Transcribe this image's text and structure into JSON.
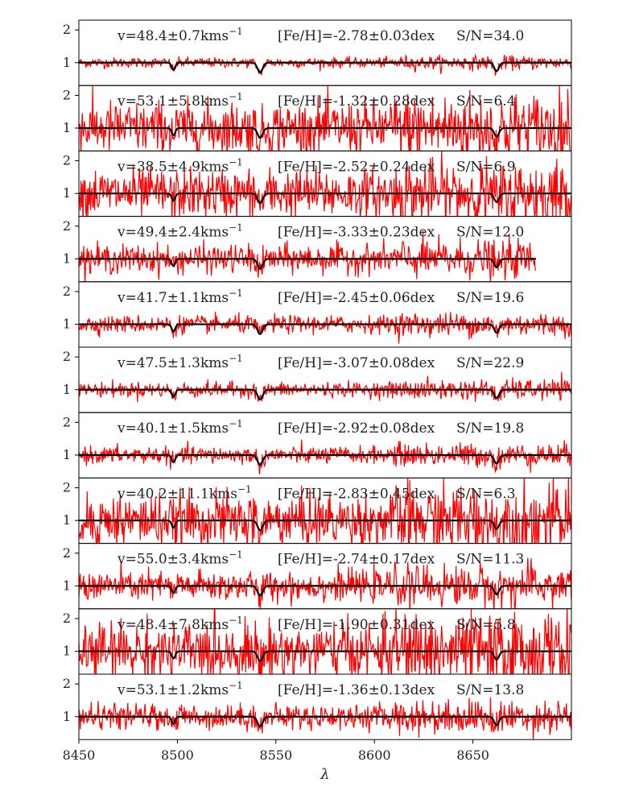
{
  "chart_data": {
    "type": "line",
    "xlabel": "λ",
    "xlim": [
      8450,
      8700
    ],
    "xticks": [
      8450,
      8500,
      8550,
      8600,
      8650
    ],
    "ylim": [
      0.3,
      2.3
    ],
    "yticks": [
      1,
      2
    ],
    "grid": false,
    "colors": {
      "observed": "#ff0000",
      "model": "#000000"
    },
    "series": [
      {
        "name": "observed spectrum"
      },
      {
        "name": "model spectrum"
      }
    ],
    "panels": [
      {
        "velocity": "v=48.4±0.7kms",
        "feh": "[Fe/H]=-2.78±0.03dex",
        "sn": "S/N=34.0",
        "sn_value": 34.0,
        "x_end": 8700
      },
      {
        "velocity": "v=53.1±5.8kms",
        "feh": "[Fe/H]=-1.32±0.28dex",
        "sn": "S/N=6.4",
        "sn_value": 6.4,
        "x_end": 8700
      },
      {
        "velocity": "v=38.5±4.9kms",
        "feh": "[Fe/H]=-2.52±0.24dex",
        "sn": "S/N=6.9",
        "sn_value": 6.9,
        "x_end": 8700
      },
      {
        "velocity": "v=49.4±2.4kms",
        "feh": "[Fe/H]=-3.33±0.23dex",
        "sn": "S/N=12.0",
        "sn_value": 12.0,
        "x_end": 8682
      },
      {
        "velocity": "v=41.7±1.1kms",
        "feh": "[Fe/H]=-2.45±0.06dex",
        "sn": "S/N=19.6",
        "sn_value": 19.6,
        "x_end": 8700
      },
      {
        "velocity": "v=47.5±1.3kms",
        "feh": "[Fe/H]=-3.07±0.08dex",
        "sn": "S/N=22.9",
        "sn_value": 22.9,
        "x_end": 8700
      },
      {
        "velocity": "v=40.1±1.5kms",
        "feh": "[Fe/H]=-2.92±0.08dex",
        "sn": "S/N=19.8",
        "sn_value": 19.8,
        "x_end": 8700
      },
      {
        "velocity": "v=40.2±11.1kms",
        "feh": "[Fe/H]=-2.83±0.45dex",
        "sn": "S/N=6.3",
        "sn_value": 6.3,
        "x_end": 8700
      },
      {
        "velocity": "v=55.0±3.4kms",
        "feh": "[Fe/H]=-2.74±0.17dex",
        "sn": "S/N=11.3",
        "sn_value": 11.3,
        "x_end": 8700
      },
      {
        "velocity": "v=48.4±7.8kms",
        "feh": "[Fe/H]=-1.90±0.31dex",
        "sn": "S/N=5.8",
        "sn_value": 5.8,
        "x_end": 8700
      },
      {
        "velocity": "v=53.1±1.2kms",
        "feh": "[Fe/H]=-1.36±0.13dex",
        "sn": "S/N=13.8",
        "sn_value": 13.8,
        "x_end": 8700
      }
    ],
    "absorption_lines": [
      8498,
      8542,
      8662
    ],
    "velocity_unit_exponent": "−1"
  }
}
